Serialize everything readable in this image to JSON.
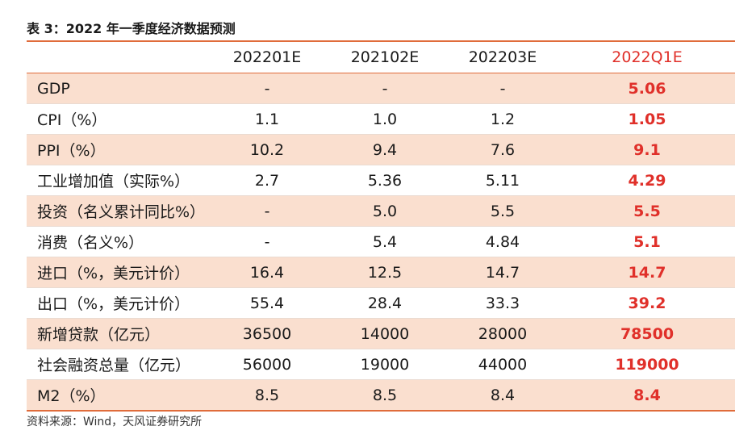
{
  "caption": "表 3：2022 年一季度经济数据预测",
  "table": {
    "headers": [
      "",
      "202201E",
      "202102E",
      "202203E",
      "2022Q1E"
    ],
    "rows": [
      {
        "label": "GDP",
        "values": [
          "-",
          "-",
          "-",
          "5.06"
        ]
      },
      {
        "label": "CPI（%）",
        "values": [
          "1.1",
          "1.0",
          "1.2",
          "1.05"
        ]
      },
      {
        "label": "PPI（%）",
        "values": [
          "10.2",
          "9.4",
          "7.6",
          "9.1"
        ]
      },
      {
        "label": "工业增加值（实际%）",
        "values": [
          "2.7",
          "5.36",
          "5.11",
          "4.29"
        ]
      },
      {
        "label": "投资（名义累计同比%）",
        "values": [
          "-",
          "5.0",
          "5.5",
          "5.5"
        ]
      },
      {
        "label": "消费（名义%）",
        "values": [
          "-",
          "5.4",
          "4.84",
          "5.1"
        ]
      },
      {
        "label": "进口（%，美元计价）",
        "values": [
          "16.4",
          "12.5",
          "14.7",
          "14.7"
        ]
      },
      {
        "label": "出口（%，美元计价）",
        "values": [
          "55.4",
          "28.4",
          "33.3",
          "39.2"
        ]
      },
      {
        "label": "新增贷款（亿元）",
        "values": [
          "36500",
          "14000",
          "28000",
          "78500"
        ]
      },
      {
        "label": "社会融资总量（亿元）",
        "values": [
          "56000",
          "19000",
          "44000",
          "119000"
        ]
      },
      {
        "label": "M2（%）",
        "values": [
          "8.5",
          "8.5",
          "8.4",
          "8.4"
        ]
      }
    ]
  },
  "source": "资料来源：Wind，天风证券研究所",
  "colors": {
    "rule": "#e06c3b",
    "shade": "#fadfcf",
    "highlight": "#e0302a"
  }
}
